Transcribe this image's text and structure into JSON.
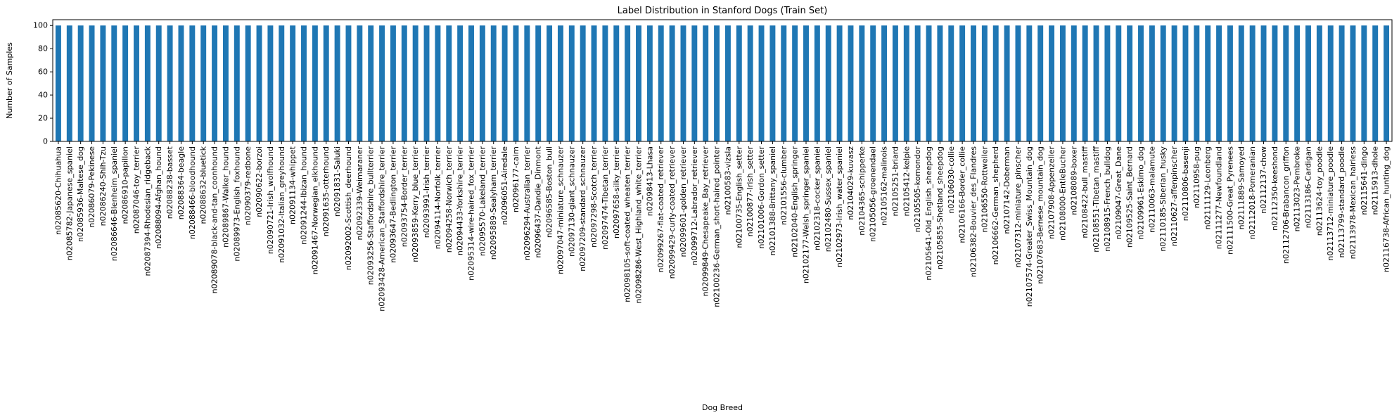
{
  "chart_data": {
    "type": "bar",
    "title": "Label Distribution in Stanford Dogs (Train Set)",
    "xlabel": "Dog Breed",
    "ylabel": "Number of Samples",
    "ylim": [
      0,
      105
    ],
    "yticks": [
      0,
      20,
      40,
      60,
      80,
      100
    ],
    "grid": false,
    "bar_color": "#1f77b4",
    "categories": [
      "n02085620-Chihuahua",
      "n02085782-Japanese_spaniel",
      "n02085936-Maltese_dog",
      "n02086079-Pekinese",
      "n02086240-Shih-Tzu",
      "n02086646-Blenheim_spaniel",
      "n02086910-papillon",
      "n02087046-toy_terrier",
      "n02087394-Rhodesian_ridgeback",
      "n02088094-Afghan_hound",
      "n02088238-basset",
      "n02088364-beagle",
      "n02088466-bloodhound",
      "n02088632-bluetick",
      "n02089078-black-and-tan_coonhound",
      "n02089867-Walker_hound",
      "n02089973-English_foxhound",
      "n02090379-redbone",
      "n02090622-borzoi",
      "n02090721-Irish_wolfhound",
      "n02091032-Italian_greyhound",
      "n02091134-whippet",
      "n02091244-Ibizan_hound",
      "n02091467-Norwegian_elkhound",
      "n02091635-otterhound",
      "n02091831-Saluki",
      "n02092002-Scottish_deerhound",
      "n02092339-Weimaraner",
      "n02093256-Staffordshire_bullterrier",
      "n02093428-American_Staffordshire_terrier",
      "n02093647-Bedlington_terrier",
      "n02093754-Border_terrier",
      "n02093859-Kerry_blue_terrier",
      "n02093991-Irish_terrier",
      "n02094114-Norfolk_terrier",
      "n02094258-Norwich_terrier",
      "n02094433-Yorkshire_terrier",
      "n02095314-wire-haired_fox_terrier",
      "n02095570-Lakeland_terrier",
      "n02095889-Sealyham_terrier",
      "n02096051-Airedale",
      "n02096177-cairn",
      "n02096294-Australian_terrier",
      "n02096437-Dandie_Dinmont",
      "n02096585-Boston_bull",
      "n02097047-miniature_schnauzer",
      "n02097130-giant_schnauzer",
      "n02097209-standard_schnauzer",
      "n02097298-Scotch_terrier",
      "n02097474-Tibetan_terrier",
      "n02097658-silky_terrier",
      "n02098105-soft-coated_wheaten_terrier",
      "n02098286-West_Highland_white_terrier",
      "n02098413-Lhasa",
      "n02099267-flat-coated_retriever",
      "n02099429-curly-coated_retriever",
      "n02099601-golden_retriever",
      "n02099712-Labrador_retriever",
      "n02099849-Chesapeake_Bay_retriever",
      "n02100236-German_short-haired_pointer",
      "n02100583-vizsla",
      "n02100735-English_setter",
      "n02100877-Irish_setter",
      "n02101006-Gordon_setter",
      "n02101388-Brittany_spaniel",
      "n02101556-clumber",
      "n02102040-English_springer",
      "n02102177-Welsh_springer_spaniel",
      "n02102318-cocker_spaniel",
      "n02102480-Sussex_spaniel",
      "n02102973-Irish_water_spaniel",
      "n02104029-kuvasz",
      "n02104365-schipperke",
      "n02105056-groenendael",
      "n02105162-malinois",
      "n02105251-briard",
      "n02105412-kelpie",
      "n02105505-komondor",
      "n02105641-Old_English_sheepdog",
      "n02105855-Shetland_sheepdog",
      "n02106030-collie",
      "n02106166-Border_collie",
      "n02106382-Bouvier_des_Flandres",
      "n02106550-Rottweiler",
      "n02106662-German_shepherd",
      "n02107142-Doberman",
      "n02107312-miniature_pinscher",
      "n02107574-Greater_Swiss_Mountain_dog",
      "n02107683-Bernese_mountain_dog",
      "n02107908-Appenzeller",
      "n02108000-EntleBucher",
      "n02108089-boxer",
      "n02108422-bull_mastiff",
      "n02108551-Tibetan_mastiff",
      "n02108915-French_bulldog",
      "n02109047-Great_Dane",
      "n02109525-Saint_Bernard",
      "n02109961-Eskimo_dog",
      "n02110063-malamute",
      "n02110185-Siberian_husky",
      "n02110627-affenpinscher",
      "n02110806-basenji",
      "n02110958-pug",
      "n02111129-Leonberg",
      "n02111277-Newfoundland",
      "n02111500-Great_Pyrenees",
      "n02111889-Samoyed",
      "n02112018-Pomeranian",
      "n02112137-chow",
      "n02112350-keeshond",
      "n02112706-Brabancon_griffon",
      "n02113023-Pembroke",
      "n02113186-Cardigan",
      "n02113624-toy_poodle",
      "n02113712-miniature_poodle",
      "n02113799-standard_poodle",
      "n02113978-Mexican_hairless",
      "n02115641-dingo",
      "n02115913-dhole",
      "n02116738-African_hunting_dog"
    ],
    "values": [
      100,
      100,
      100,
      100,
      100,
      100,
      100,
      100,
      100,
      100,
      100,
      100,
      100,
      100,
      100,
      100,
      100,
      100,
      100,
      100,
      100,
      100,
      100,
      100,
      100,
      100,
      100,
      100,
      100,
      100,
      100,
      100,
      100,
      100,
      100,
      100,
      100,
      100,
      100,
      100,
      100,
      100,
      100,
      100,
      100,
      100,
      100,
      100,
      100,
      100,
      100,
      100,
      100,
      100,
      100,
      100,
      100,
      100,
      100,
      100,
      100,
      100,
      100,
      100,
      100,
      100,
      100,
      100,
      100,
      100,
      100,
      100,
      100,
      100,
      100,
      100,
      100,
      100,
      100,
      100,
      100,
      100,
      100,
      100,
      100,
      100,
      100,
      100,
      100,
      100,
      100,
      100,
      100,
      100,
      100,
      100,
      100,
      100,
      100,
      100,
      100,
      100,
      100,
      100,
      100,
      100,
      100,
      100,
      100,
      100,
      100,
      100,
      100,
      100,
      100,
      100,
      100,
      100,
      100,
      100
    ]
  }
}
